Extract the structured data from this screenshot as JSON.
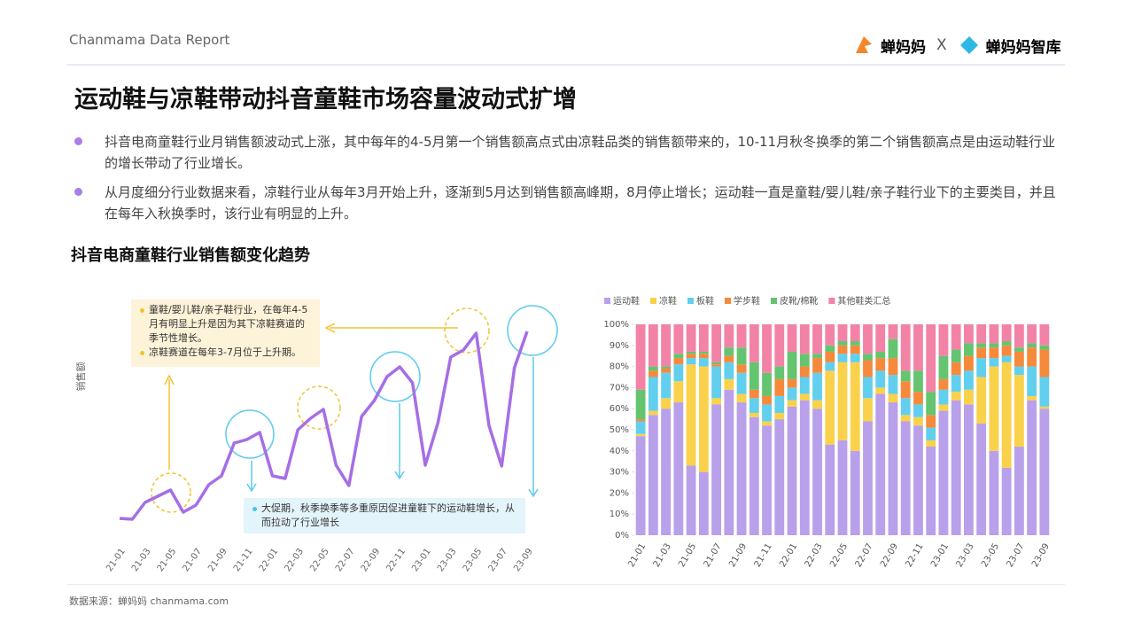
{
  "header": {
    "report": "Chanmama Data Report",
    "logo_left": "蝉妈妈",
    "separator": "X",
    "logo_right": "蝉妈妈智库"
  },
  "title": "运动鞋与凉鞋带动抖音童鞋市场容量波动式扩增",
  "bullets": [
    "抖音电商童鞋行业月销售额波动式上涨，其中每年的4-5月第一个销售额高点式由凉鞋品类的销售额带来的，10-11月秋冬换季的第二个销售额高点是由运动鞋行业的增长带动了行业增长。",
    "从月度细分行业数据来看，凉鞋行业从每年3月开始上升，逐渐到5月达到销售额高峰期，8月停止增长；运动鞋一直是童鞋/婴儿鞋/亲子鞋行业下的主要类目，并且在每年入秋换季时，该行业有明显的上升。"
  ],
  "section_title": "抖音电商童鞋行业销售额变化趋势",
  "chart_data": [
    {
      "type": "line",
      "y_label": "销售额",
      "color": "#a66ee6",
      "categories": [
        "21-01",
        null,
        "21-03",
        null,
        "21-05",
        null,
        "21-07",
        null,
        "21-09",
        null,
        "21-11",
        null,
        "22-01",
        null,
        "22-03",
        null,
        "22-05",
        null,
        "22-07",
        null,
        "22-09",
        null,
        "22-11",
        null,
        "23-01",
        null,
        "23-03",
        null,
        "23-05",
        null,
        "23-07",
        null,
        "23-09"
      ],
      "values": [
        15,
        14,
        33,
        40,
        47,
        22,
        30,
        53,
        63,
        100,
        104,
        112,
        63,
        60,
        115,
        128,
        138,
        75,
        52,
        130,
        148,
        175,
        186,
        168,
        75,
        123,
        197,
        205,
        224,
        120,
        74,
        185,
        226
      ],
      "annotations": {
        "box_yellow": [
          "童鞋/婴儿鞋/亲子鞋行业，在每年4-5月有明显上升是因为其下凉鞋赛道的季节性增长。",
          "凉鞋赛道在每年3-7月位于上升期。"
        ],
        "box_blue": [
          "大促期，秋季换季等多重原因促进童鞋下的运动鞋增长，从而拉动了行业增长"
        ]
      }
    },
    {
      "type": "bar",
      "stacked": true,
      "legend": "top-left",
      "categories": [
        "21-01",
        null,
        "21-03",
        null,
        "21-05",
        null,
        "21-07",
        null,
        "21-09",
        null,
        "21-11",
        null,
        "22-01",
        null,
        "22-03",
        null,
        "22-05",
        null,
        "22-07",
        null,
        "22-09",
        null,
        "22-11",
        null,
        "23-01",
        null,
        "23-03",
        null,
        "23-05",
        null,
        "23-07",
        null,
        "23-09"
      ],
      "ylim": [
        0,
        100
      ],
      "yticks": [
        {
          "value": 0,
          "label": "0%"
        },
        {
          "value": 10,
          "label": "10%"
        },
        {
          "value": 20,
          "label": "20%"
        },
        {
          "value": 30,
          "label": "30%"
        },
        {
          "value": 40,
          "label": "40%"
        },
        {
          "value": 50,
          "label": "50%"
        },
        {
          "value": 60,
          "label": "60%"
        },
        {
          "value": 70,
          "label": "70%"
        },
        {
          "value": 80,
          "label": "80%"
        },
        {
          "value": 90,
          "label": "90%"
        },
        {
          "value": 100,
          "label": "100%"
        }
      ],
      "series": [
        {
          "name": "运动鞋",
          "color": "#b9a0ea",
          "values": [
            47,
            57,
            60,
            63,
            33,
            30,
            62,
            69,
            63,
            56,
            52,
            55,
            61,
            64,
            60,
            43,
            45,
            40,
            54,
            67,
            63,
            54,
            52,
            42,
            59,
            64,
            62,
            53,
            40,
            32,
            42,
            64,
            60
          ]
        },
        {
          "name": "凉鞋",
          "color": "#fad14b",
          "values": [
            1,
            2,
            5,
            10,
            48,
            50,
            3,
            5,
            4,
            2,
            2,
            3,
            3,
            3,
            4,
            35,
            37,
            42,
            11,
            3,
            4,
            3,
            4,
            3,
            3,
            4,
            7,
            22,
            40,
            50,
            34,
            2,
            1
          ]
        },
        {
          "name": "板鞋",
          "color": "#62cfee",
          "values": [
            6,
            16,
            12,
            8,
            3,
            4,
            15,
            8,
            10,
            7,
            8,
            8,
            6,
            8,
            13,
            4,
            4,
            4,
            10,
            8,
            9,
            8,
            6,
            6,
            7,
            8,
            9,
            9,
            4,
            3,
            4,
            14,
            14
          ]
        },
        {
          "name": "学步鞋",
          "color": "#f58a3c",
          "values": [
            1,
            3,
            2,
            3,
            2,
            2,
            1,
            3,
            4,
            4,
            4,
            8,
            4,
            5,
            7,
            5,
            4,
            4,
            8,
            6,
            8,
            8,
            6,
            6,
            5,
            6,
            7,
            5,
            5,
            5,
            7,
            9,
            13
          ]
        },
        {
          "name": "皮靴/棉靴",
          "color": "#65c46f",
          "values": [
            14,
            2,
            1,
            2,
            1,
            1,
            1,
            4,
            8,
            13,
            11,
            6,
            13,
            6,
            2,
            3,
            2,
            2,
            3,
            3,
            9,
            5,
            10,
            11,
            11,
            6,
            6,
            2,
            2,
            2,
            2,
            2,
            2
          ]
        },
        {
          "name": "其他鞋类汇总",
          "color": "#f283a6",
          "values": [
            31,
            20,
            20,
            14,
            13,
            13,
            18,
            11,
            11,
            18,
            23,
            20,
            13,
            14,
            14,
            10,
            8,
            8,
            14,
            13,
            7,
            22,
            22,
            32,
            15,
            12,
            9,
            9,
            9,
            8,
            11,
            9,
            10
          ]
        }
      ]
    }
  ],
  "source": "数据来源：蝉妈妈 chanmama.com"
}
